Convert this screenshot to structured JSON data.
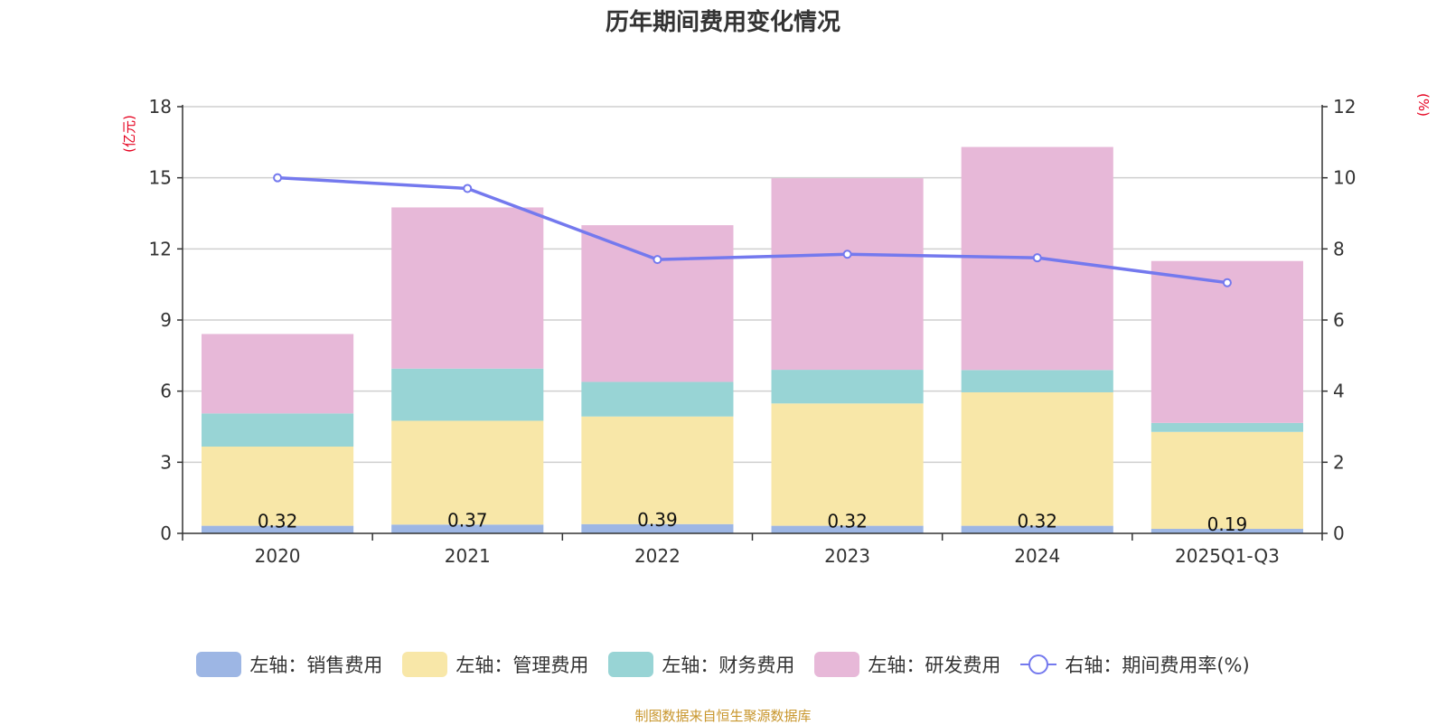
{
  "chart_data": {
    "type": "bar",
    "title": "历年期间费用变化情况",
    "categories": [
      "2020",
      "2021",
      "2022",
      "2023",
      "2024",
      "2025Q1-Q3"
    ],
    "left_axis": {
      "unit": "(亿元)",
      "ylim": [
        0,
        18
      ],
      "ticks": [
        "0",
        "3",
        "6",
        "9",
        "12",
        "15",
        "18"
      ]
    },
    "right_axis": {
      "unit": "(%)",
      "ylim": [
        0,
        12
      ],
      "ticks": [
        "0",
        "2",
        "4",
        "6",
        "8",
        "10",
        "12"
      ]
    },
    "series": [
      {
        "name": "左轴：销售费用",
        "axis": "left",
        "kind": "bar",
        "color": "#9db6e4",
        "values": [
          0.32,
          0.37,
          0.39,
          0.32,
          0.32,
          0.19
        ],
        "labels": [
          "0.32",
          "0.37",
          "0.39",
          "0.32",
          "0.32",
          "0.19"
        ]
      },
      {
        "name": "左轴：管理费用",
        "axis": "left",
        "kind": "bar",
        "color": "#f8e7a8",
        "values": [
          3.34,
          4.38,
          4.54,
          5.16,
          5.63,
          4.09
        ]
      },
      {
        "name": "左轴：财务费用",
        "axis": "left",
        "kind": "bar",
        "color": "#98d4d5",
        "values": [
          1.4,
          2.2,
          1.46,
          1.42,
          0.94,
          0.38
        ]
      },
      {
        "name": "左轴：研发费用",
        "axis": "left",
        "kind": "bar",
        "color": "#e7b8d8",
        "values": [
          3.35,
          6.8,
          6.61,
          8.08,
          9.41,
          6.83
        ]
      },
      {
        "name": "右轴：期间费用率(%)",
        "axis": "right",
        "kind": "line",
        "color": "#7479ee",
        "values": [
          10.0,
          9.7,
          7.7,
          7.85,
          7.75,
          7.05
        ]
      }
    ],
    "grid": true,
    "legend_position": "bottom"
  },
  "footer": {
    "source": "制图数据来自恒生聚源数据库"
  }
}
